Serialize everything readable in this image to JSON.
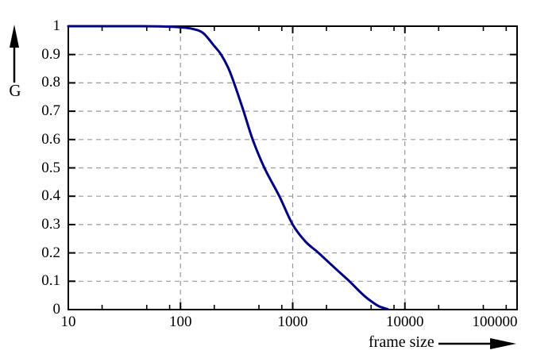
{
  "figure": {
    "title": "",
    "background_color": "#ffffff",
    "axis_color": "#000000",
    "grid_color": "#999999",
    "curve_color": "#000080"
  },
  "chart_data": {
    "type": "line",
    "title": "",
    "xlabel": "frame size",
    "ylabel": "G",
    "x_scale": "log",
    "x_range": [
      10,
      100000
    ],
    "y_range": [
      0,
      1
    ],
    "x_tick_values": [
      10,
      100,
      1000,
      10000,
      100000
    ],
    "x_tick_labels": [
      "10",
      "100",
      "1000",
      "10000",
      "100000"
    ],
    "x_minor_tick_multipliers": [
      2,
      5,
      8
    ],
    "y_tick_values": [
      0,
      0.1,
      0.2,
      0.3,
      0.4,
      0.5,
      0.6,
      0.7,
      0.8,
      0.9,
      1
    ],
    "y_tick_labels": [
      "0",
      "0.1",
      "0.2",
      "0.3",
      "0.4",
      "0.5",
      "0.6",
      "0.7",
      "0.8",
      "0.9",
      "1"
    ],
    "grid": {
      "style": "dashed",
      "color": "#999999",
      "horizontal_lines_at_y": [
        0.1,
        0.2,
        0.3,
        0.4,
        0.5,
        0.6,
        0.7,
        0.8,
        0.9
      ],
      "vertical_lines_at_x": [
        100,
        1000,
        10000
      ]
    },
    "legend": "none",
    "series": [
      {
        "name": "G",
        "color": "#000080",
        "points": [
          [
            10,
            1.0
          ],
          [
            20,
            1.0
          ],
          [
            40,
            1.0
          ],
          [
            70,
            0.999
          ],
          [
            100,
            0.996
          ],
          [
            130,
            0.99
          ],
          [
            160,
            0.975
          ],
          [
            200,
            0.93
          ],
          [
            230,
            0.9
          ],
          [
            265,
            0.855
          ],
          [
            300,
            0.8
          ],
          [
            365,
            0.7
          ],
          [
            440,
            0.6
          ],
          [
            560,
            0.5
          ],
          [
            760,
            0.4
          ],
          [
            1000,
            0.3
          ],
          [
            1300,
            0.24
          ],
          [
            1700,
            0.2
          ],
          [
            2400,
            0.145
          ],
          [
            3200,
            0.1
          ],
          [
            4300,
            0.05
          ],
          [
            5200,
            0.025
          ],
          [
            6000,
            0.01
          ],
          [
            7000,
            0.002
          ]
        ]
      }
    ]
  }
}
